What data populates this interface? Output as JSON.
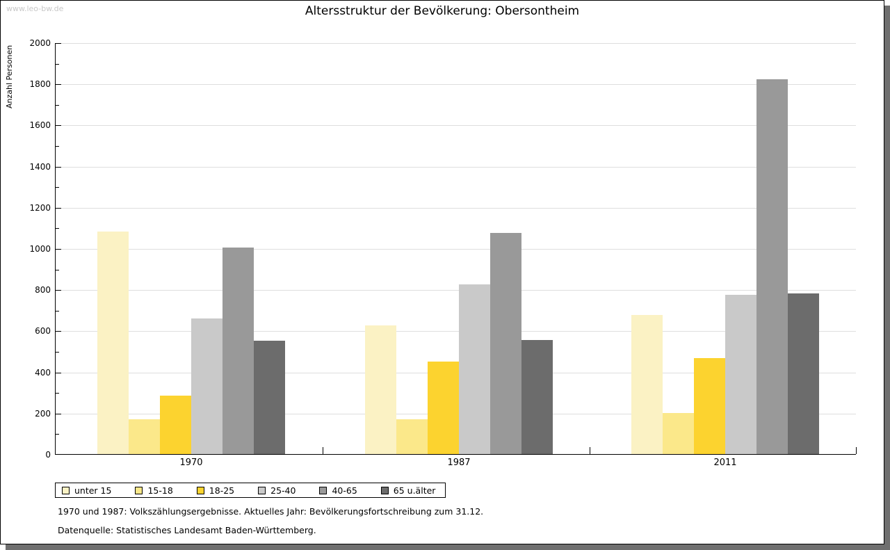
{
  "watermark": "www.leo-bw.de",
  "chart_data": {
    "type": "bar",
    "title": "Altersstruktur der Bevölkerung: Obersontheim",
    "xlabel": "",
    "ylabel": "Anzahl Personen",
    "ylim": [
      0,
      2000
    ],
    "ytick_step": 200,
    "ytick_minor_step": 100,
    "grid": true,
    "legend_position": "bottom-left",
    "categories": [
      "1970",
      "1987",
      "2011"
    ],
    "series": [
      {
        "name": "unter 15",
        "color": "#FBF2C4",
        "values": [
          1080,
          625,
          675
        ]
      },
      {
        "name": "15-18",
        "color": "#FBE88A",
        "values": [
          170,
          170,
          200
        ]
      },
      {
        "name": "18-25",
        "color": "#FCD32F",
        "values": [
          285,
          450,
          465
        ]
      },
      {
        "name": "25-40",
        "color": "#C9C9C9",
        "values": [
          660,
          825,
          775
        ]
      },
      {
        "name": "40-65",
        "color": "#999999",
        "values": [
          1005,
          1075,
          1820
        ]
      },
      {
        "name": "65 u.älter",
        "color": "#6C6C6C",
        "values": [
          550,
          555,
          780
        ]
      }
    ]
  },
  "footnotes": [
    "1970 und 1987: Volkszählungsergebnisse. Aktuelles Jahr: Bevölkerungsfortschreibung zum 31.12.",
    "Datenquelle: Statistisches Landesamt Baden-Württemberg."
  ],
  "colors": {
    "gridline": "#DEDEDE",
    "axis": "#000000",
    "shadow": "#6F6F6F",
    "watermark_text": "#C8C8C8"
  }
}
